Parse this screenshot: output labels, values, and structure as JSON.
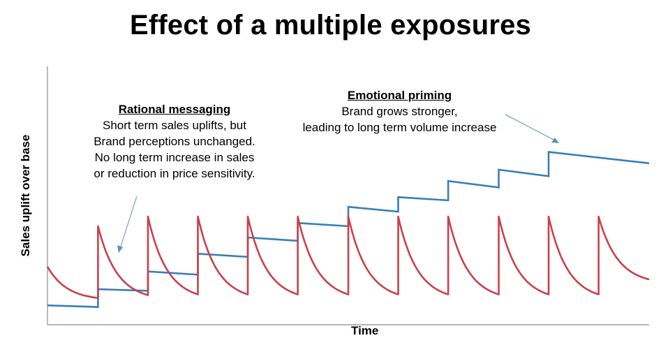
{
  "chart_data": {
    "type": "line",
    "title": "Effect of a multiple exposures",
    "xlabel": "Time",
    "ylabel": "Sales uplift over base",
    "grid": false,
    "legend": "none",
    "series": [
      {
        "color": "#3a7fb5",
        "steps": [
          {
            "x_start": 0.0,
            "x_end": 0.84,
            "y_start": 0.12,
            "y_end": 0.11
          },
          {
            "x_start": 0.84,
            "x_end": 1.67,
            "y_start": 0.22,
            "y_end": 0.21
          },
          {
            "x_start": 1.67,
            "x_end": 2.5,
            "y_start": 0.33,
            "y_end": 0.31
          },
          {
            "x_start": 2.5,
            "x_end": 3.33,
            "y_start": 0.44,
            "y_end": 0.42
          },
          {
            "x_start": 3.33,
            "x_end": 4.16,
            "y_start": 0.54,
            "y_end": 0.52
          },
          {
            "x_start": 4.16,
            "x_end": 5.0,
            "y_start": 0.63,
            "y_end": 0.61
          },
          {
            "x_start": 5.0,
            "x_end": 5.83,
            "y_start": 0.73,
            "y_end": 0.7
          },
          {
            "x_start": 5.83,
            "x_end": 6.66,
            "y_start": 0.79,
            "y_end": 0.77
          },
          {
            "x_start": 6.66,
            "x_end": 7.5,
            "y_start": 0.89,
            "y_end": 0.85
          },
          {
            "x_start": 7.5,
            "x_end": 8.33,
            "y_start": 0.96,
            "y_end": 0.92
          },
          {
            "x_start": 8.33,
            "x_end": 10.0,
            "y_start": 1.07,
            "y_end": 1.0
          }
        ]
      },
      {
        "color": "#c8414b",
        "pulses": [
          {
            "x_start": 0.0,
            "x_end": 0.84,
            "peak": 0.36,
            "trough": 0.15
          },
          {
            "x_start": 0.84,
            "x_end": 1.67,
            "peak": 0.61,
            "trough": 0.15
          },
          {
            "x_start": 1.67,
            "x_end": 2.5,
            "peak": 0.67,
            "trough": 0.15
          },
          {
            "x_start": 2.5,
            "x_end": 3.33,
            "peak": 0.67,
            "trough": 0.15
          },
          {
            "x_start": 3.33,
            "x_end": 4.16,
            "peak": 0.67,
            "trough": 0.15
          },
          {
            "x_start": 4.16,
            "x_end": 5.0,
            "peak": 0.67,
            "trough": 0.15
          },
          {
            "x_start": 5.0,
            "x_end": 5.83,
            "peak": 0.67,
            "trough": 0.15
          },
          {
            "x_start": 5.83,
            "x_end": 6.66,
            "peak": 0.67,
            "trough": 0.15
          },
          {
            "x_start": 6.66,
            "x_end": 7.5,
            "peak": 0.67,
            "trough": 0.15
          },
          {
            "x_start": 7.5,
            "x_end": 8.33,
            "peak": 0.67,
            "trough": 0.15
          },
          {
            "x_start": 8.33,
            "x_end": 9.16,
            "peak": 0.67,
            "trough": 0.15
          },
          {
            "x_start": 9.16,
            "x_end": 10.0,
            "peak": 0.67,
            "trough": 0.25
          }
        ]
      }
    ],
    "xlim": [
      0,
      10
    ],
    "ylim": [
      0,
      1.6
    ],
    "annotations": [
      {
        "id": "rational",
        "heading": "Rational messaging",
        "lines": [
          "Short term sales uplifts, but",
          "Brand perceptions unchanged.",
          "No long term increase in sales",
          "or reduction in price sensitivity."
        ]
      },
      {
        "id": "emotional",
        "heading": "Emotional priming",
        "lines": [
          "Brand grows stronger,",
          "leading to long term volume increase"
        ]
      }
    ]
  }
}
